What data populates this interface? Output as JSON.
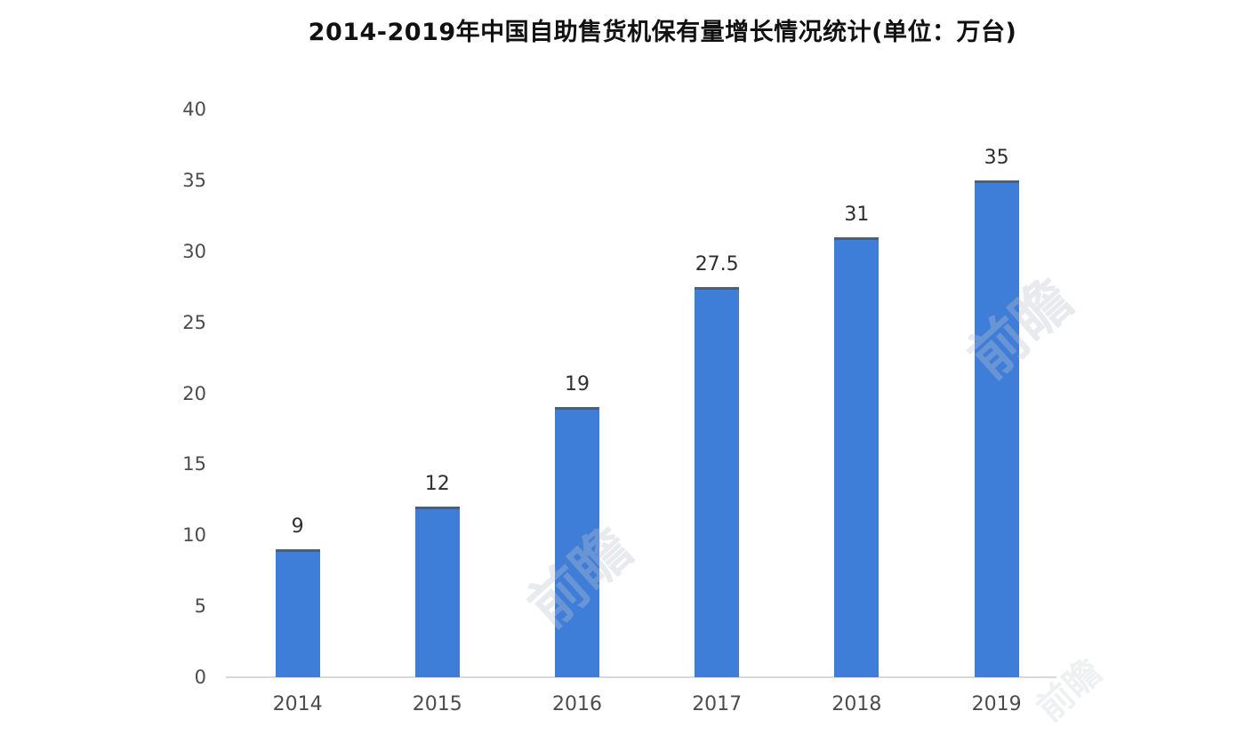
{
  "chart_data": {
    "type": "bar",
    "title": "2014-2019年中国自助售货机保有量增长情况统计(单位：万台)",
    "categories": [
      "2014",
      "2015",
      "2016",
      "2017",
      "2018",
      "2019"
    ],
    "values": [
      9,
      12,
      19,
      27.5,
      31,
      35
    ],
    "value_labels": [
      "9",
      "12",
      "19",
      "27.5",
      "31",
      "35"
    ],
    "unit": "万台",
    "ylim": [
      0,
      40
    ],
    "yticks": [
      0,
      5,
      10,
      15,
      20,
      25,
      30,
      35,
      40
    ],
    "xlabel": "",
    "ylabel": "",
    "grid": false,
    "legend_position": "none",
    "bar_color": "#3e7dd8",
    "bar_top_edge_color": "#4c5f76",
    "axis_line_color": "#d9d9d9",
    "tick_label_color": "#4c4c4c",
    "value_label_color": "#2f2f2f",
    "title_color": "#111111",
    "background_color": "#ffffff"
  },
  "watermark": {
    "text": "前瞻"
  }
}
